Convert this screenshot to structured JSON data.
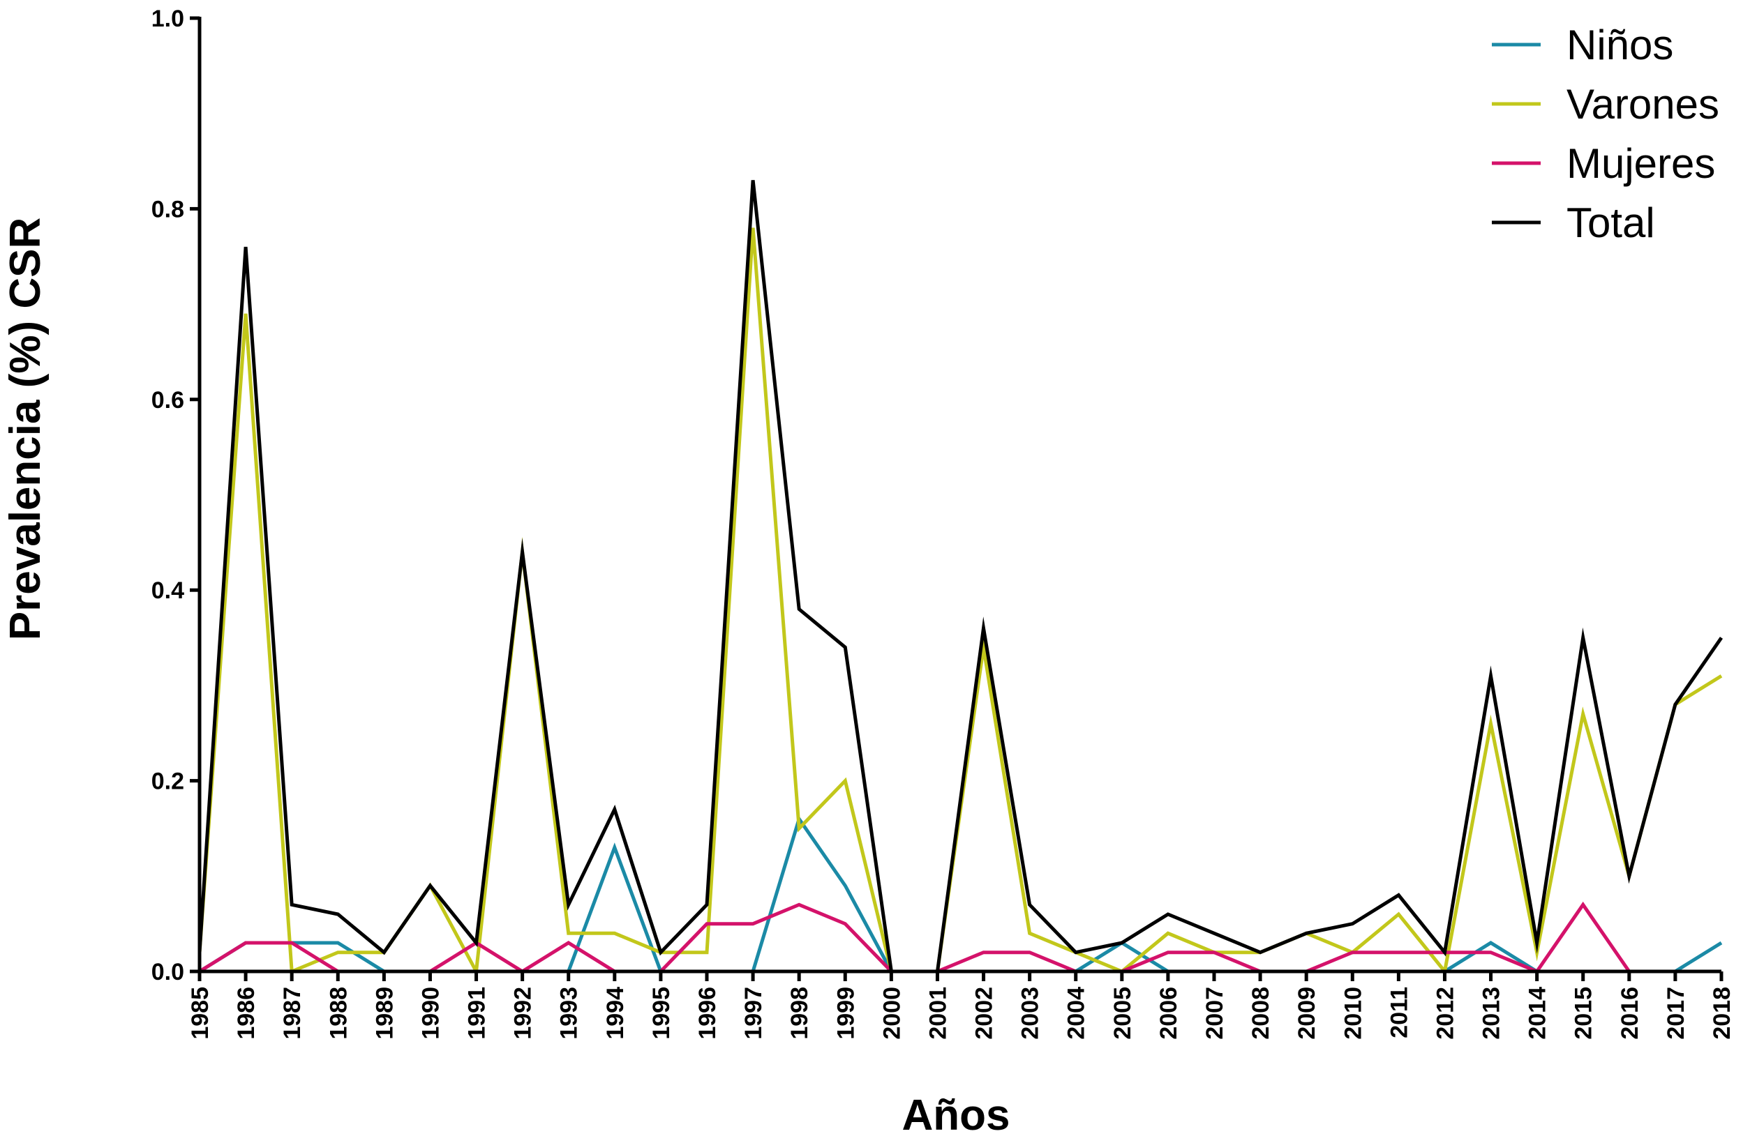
{
  "chart_data": {
    "type": "line",
    "xlabel": "Años",
    "ylabel": "Prevalencia (%) CSR",
    "ylim": [
      0,
      1.0
    ],
    "yticks": [
      "0.0",
      "0.2",
      "0.4",
      "0.6",
      "0.8",
      "1.0"
    ],
    "ytick_values": [
      0,
      0.2,
      0.4,
      0.6,
      0.8,
      1.0
    ],
    "grid": false,
    "legend_position": "top-right",
    "categories": [
      "1985",
      "1986",
      "1987",
      "1988",
      "1989",
      "1990",
      "1991",
      "1992",
      "1993",
      "1994",
      "1995",
      "1996",
      "1997",
      "1998",
      "1999",
      "2000",
      "2001",
      "2002",
      "2003",
      "2004",
      "2005",
      "2006",
      "2007",
      "2008",
      "2009",
      "2010",
      "2011",
      "2012",
      "2013",
      "2014",
      "2015",
      "2016",
      "2017",
      "2018"
    ],
    "series": [
      {
        "name": "Niños",
        "color": "#1b8aa6",
        "values": [
          0,
          0.03,
          0.03,
          0.03,
          0,
          0,
          0,
          0,
          0,
          0.13,
          0,
          0,
          0,
          0.16,
          0.09,
          0,
          0,
          0,
          0,
          0,
          0.03,
          0,
          0,
          0,
          0,
          0,
          0,
          0,
          0.03,
          0,
          0,
          0,
          0,
          0.03
        ]
      },
      {
        "name": "Varones",
        "color": "#c2c71b",
        "values": [
          0.02,
          0.69,
          0,
          0.02,
          0.02,
          0.09,
          0,
          0.44,
          0.04,
          0.04,
          0.02,
          0.02,
          0.78,
          0.15,
          0.2,
          0,
          0,
          0.34,
          0.04,
          0.02,
          0,
          0.04,
          0.02,
          0.02,
          0.04,
          0.02,
          0.06,
          0,
          0.26,
          0.02,
          0.27,
          0.1,
          0.28,
          0.31
        ]
      },
      {
        "name": "Mujeres",
        "color": "#d4126a",
        "values": [
          0,
          0.03,
          0.03,
          0,
          0,
          0,
          0.03,
          0,
          0.03,
          0,
          0,
          0.05,
          0.05,
          0.07,
          0.05,
          0,
          0,
          0.02,
          0.02,
          0,
          0,
          0.02,
          0.02,
          0,
          0,
          0.02,
          0.02,
          0.02,
          0.02,
          0,
          0.07,
          0,
          0,
          0
        ]
      },
      {
        "name": "Total",
        "color": "#000000",
        "values": [
          0.02,
          0.76,
          0.07,
          0.06,
          0.02,
          0.09,
          0.03,
          0.44,
          0.07,
          0.17,
          0.02,
          0.07,
          0.83,
          0.38,
          0.34,
          0,
          0,
          0.36,
          0.07,
          0.02,
          0.03,
          0.06,
          0.04,
          0.02,
          0.04,
          0.05,
          0.08,
          0.02,
          0.31,
          0.03,
          0.35,
          0.1,
          0.28,
          0.35
        ]
      }
    ]
  }
}
